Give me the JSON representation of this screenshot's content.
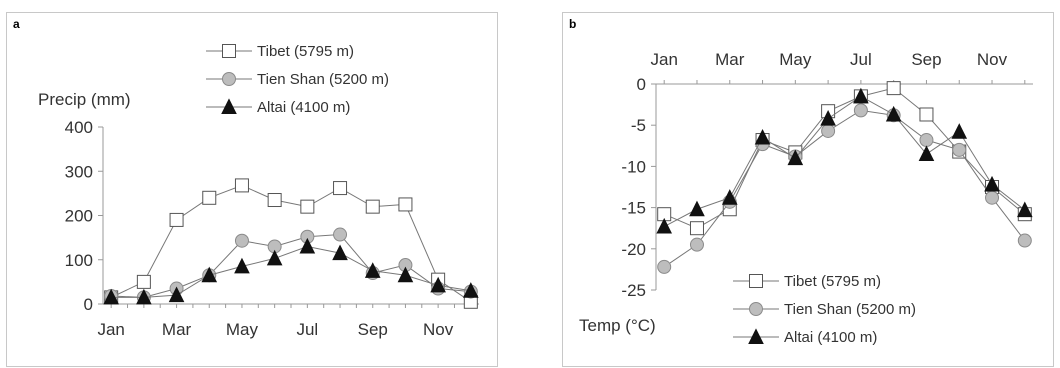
{
  "chart_data": [
    {
      "panel_label": "a",
      "type": "line",
      "ylabel": "Precip (mm)",
      "xlabel": "",
      "ylim": [
        0,
        400
      ],
      "yticks": [
        0,
        100,
        200,
        300,
        400
      ],
      "x": [
        1,
        1.5,
        2,
        2.5,
        3,
        3.5,
        4,
        4.5,
        5,
        5.5,
        6,
        6.5,
        7,
        7.5,
        8,
        8.5,
        9,
        9.5,
        10,
        10.5,
        11,
        11.5,
        12
      ],
      "xlim": [
        0.75,
        12.25
      ],
      "xticks": [
        1,
        3,
        5,
        7,
        9,
        11
      ],
      "xtick_labels": [
        "Jan",
        "Mar",
        "May",
        "Jul",
        "Sep",
        "Nov"
      ],
      "legend_position": "top",
      "series": [
        {
          "name": "Tibet (5795 m)",
          "marker": "square",
          "x": [
            1,
            2,
            3,
            4,
            5,
            6,
            7,
            8,
            9,
            10,
            11,
            12
          ],
          "values": [
            15,
            50,
            190,
            240,
            268,
            235,
            220,
            262,
            220,
            225,
            55,
            5
          ]
        },
        {
          "name": "Tien Shan (5200 m)",
          "marker": "circle",
          "x": [
            1,
            2,
            3,
            4,
            5,
            6,
            7,
            8,
            9,
            10,
            11,
            12
          ],
          "values": [
            18,
            15,
            35,
            65,
            143,
            130,
            152,
            157,
            70,
            88,
            35,
            28
          ]
        },
        {
          "name": "Altai (4100 m)",
          "marker": "triangle",
          "x": [
            1,
            2,
            3,
            4,
            5,
            6,
            7,
            8,
            9,
            10,
            11,
            12
          ],
          "values": [
            15,
            15,
            20,
            65,
            85,
            103,
            130,
            115,
            75,
            65,
            42,
            30
          ]
        }
      ]
    },
    {
      "panel_label": "b",
      "type": "line",
      "ylabel": "Temp (°C)",
      "xlabel": "",
      "ylim": [
        -25,
        0
      ],
      "yticks": [
        0,
        -5,
        -10,
        -15,
        -20,
        -25
      ],
      "xlim": [
        0.75,
        12.25
      ],
      "xticks": [
        1,
        3,
        5,
        7,
        9,
        11
      ],
      "xtick_labels": [
        "Jan",
        "Mar",
        "May",
        "Jul",
        "Sep",
        "Nov"
      ],
      "xaxis_position": "top",
      "legend_position": "bottom",
      "series": [
        {
          "name": "Tibet (5795 m)",
          "marker": "square",
          "x": [
            1,
            2,
            3,
            4,
            5,
            6,
            7,
            8,
            9,
            10,
            11,
            12
          ],
          "values": [
            -15.8,
            -17.5,
            -15.2,
            -6.8,
            -8.3,
            -3.3,
            -1.5,
            -0.5,
            -3.7,
            -8.2,
            -12.5,
            -15.8
          ]
        },
        {
          "name": "Tien Shan (5200 m)",
          "marker": "circle",
          "x": [
            1,
            2,
            3,
            4,
            5,
            6,
            7,
            8,
            9,
            10,
            11,
            12
          ],
          "values": [
            -22.2,
            -19.5,
            -14.3,
            -7.3,
            -8.8,
            -5.7,
            -3.2,
            -3.8,
            -6.8,
            -8.0,
            -13.8,
            -19.0
          ]
        },
        {
          "name": "Altai (4100 m)",
          "marker": "triangle",
          "x": [
            1,
            2,
            3,
            4,
            5,
            6,
            7,
            8,
            9,
            10,
            11,
            12
          ],
          "values": [
            -17.3,
            -15.2,
            -13.8,
            -6.5,
            -9.0,
            -4.2,
            -1.5,
            -3.7,
            -8.5,
            -5.8,
            -12.2,
            -15.3
          ]
        }
      ]
    }
  ]
}
